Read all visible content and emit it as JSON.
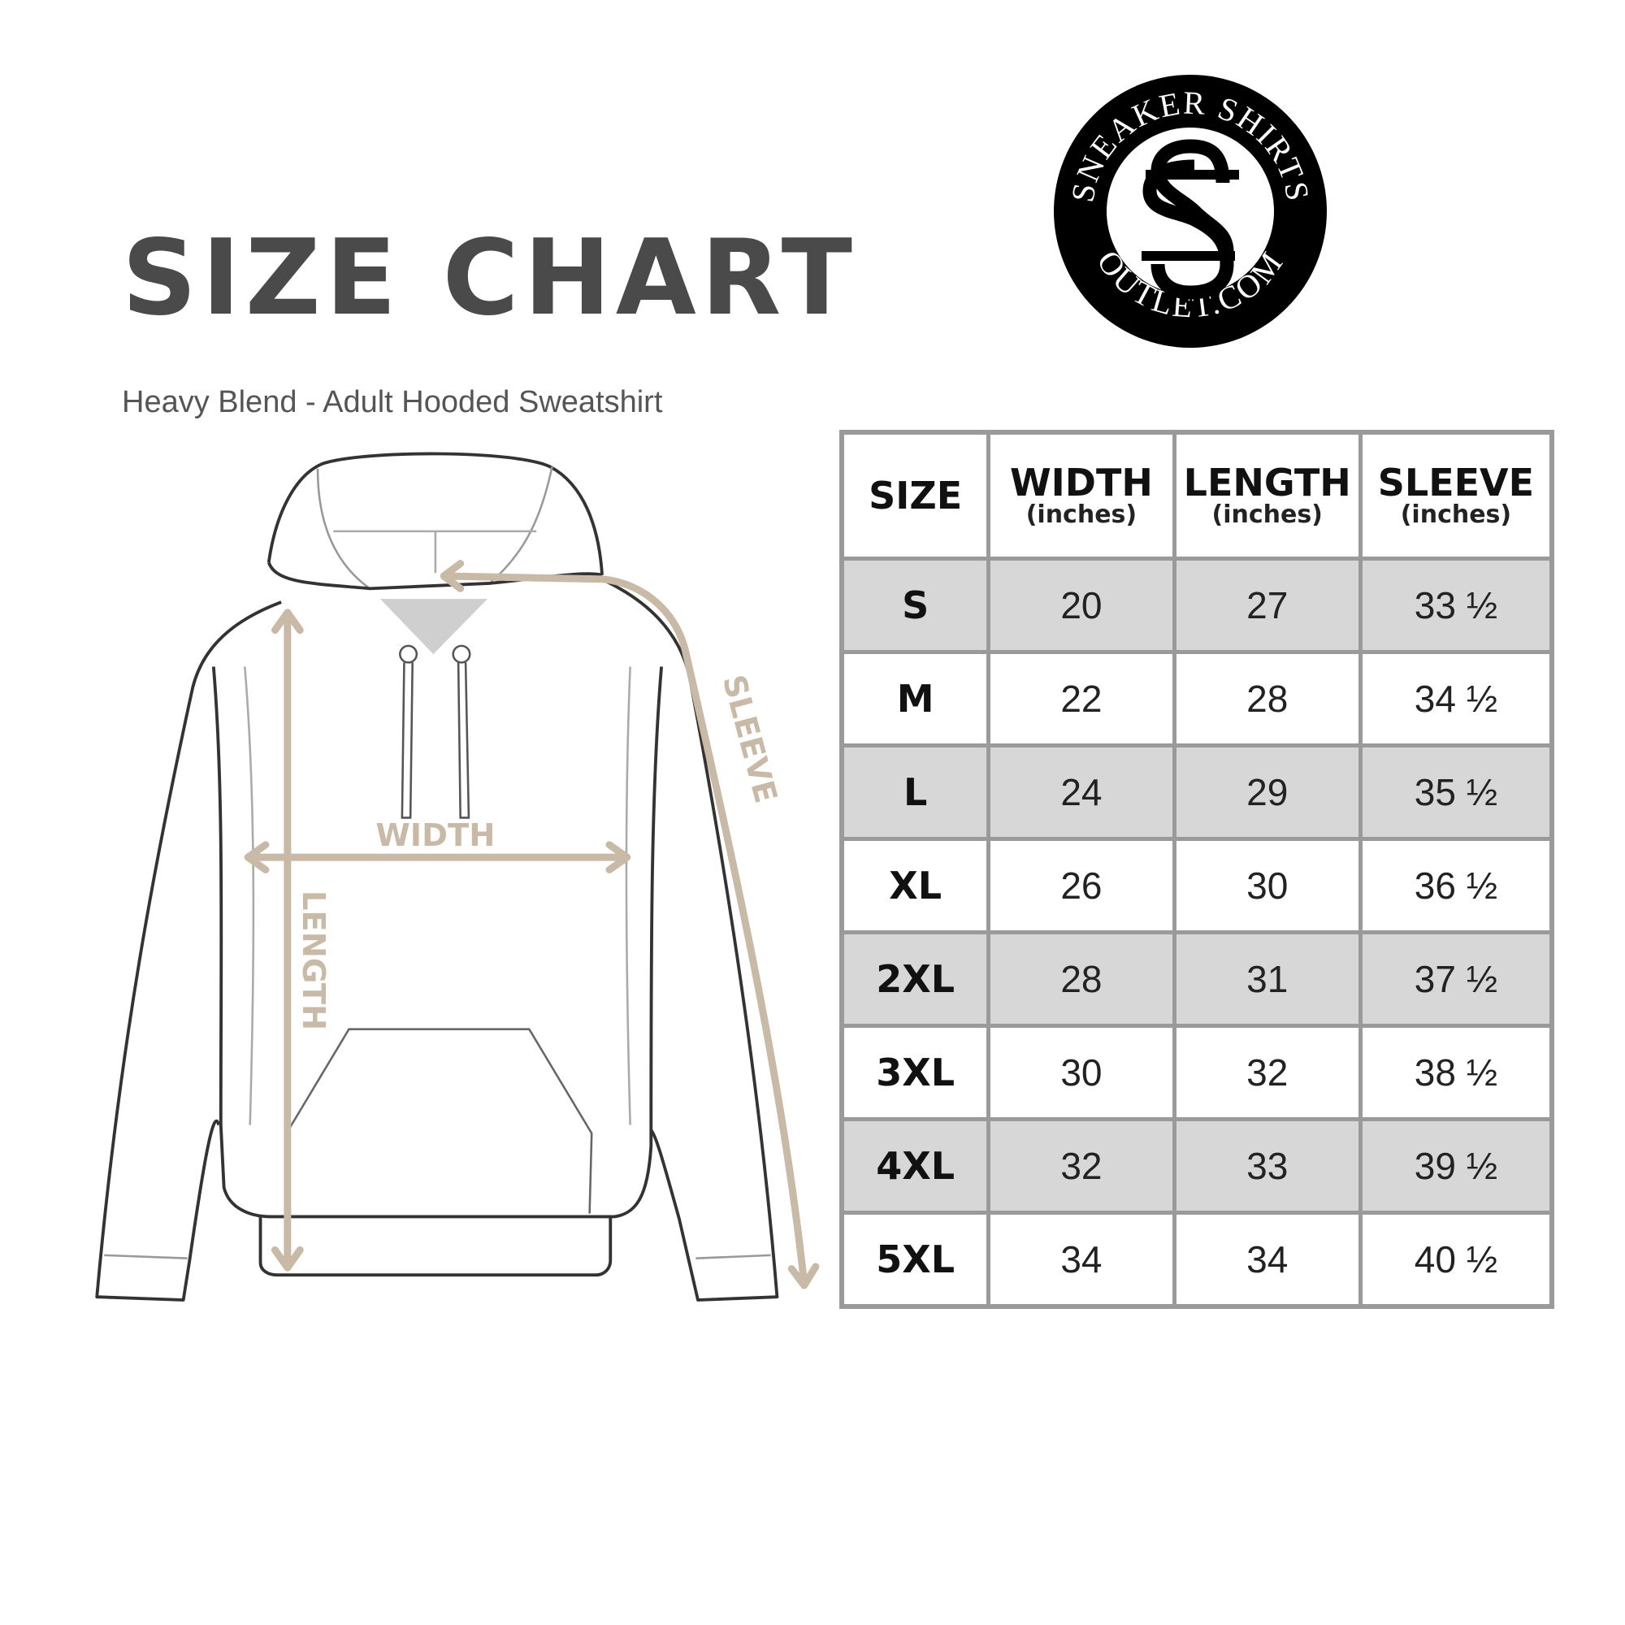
{
  "title": "SIZE CHART",
  "subtitle": "Heavy Blend - Adult Hooded Sweatshirt",
  "logo": {
    "top_text": "SNEAKER SHIRTS",
    "bottom_text": "OUTLET.COM",
    "monogram": "SS"
  },
  "diagram": {
    "labels": {
      "width": "WIDTH",
      "length": "LENGTH",
      "sleeve": "SLEEVE"
    },
    "arrow_color": "#c8baa6",
    "outline_color": "#333333"
  },
  "table": {
    "headers": [
      {
        "label": "SIZE",
        "unit": ""
      },
      {
        "label": "WIDTH",
        "unit": "(inches)"
      },
      {
        "label": "LENGTH",
        "unit": "(inches)"
      },
      {
        "label": "SLEEVE",
        "unit": "(inches)"
      }
    ],
    "rows": [
      [
        "S",
        "20",
        "27",
        "33 ½"
      ],
      [
        "M",
        "22",
        "28",
        "34 ½"
      ],
      [
        "L",
        "24",
        "29",
        "35 ½"
      ],
      [
        "XL",
        "26",
        "30",
        "36 ½"
      ],
      [
        "2XL",
        "28",
        "31",
        "37 ½"
      ],
      [
        "3XL",
        "30",
        "32",
        "38 ½"
      ],
      [
        "4XL",
        "32",
        "33",
        "39 ½"
      ],
      [
        "5XL",
        "34",
        "34",
        "40 ½"
      ]
    ],
    "shade_color": "#d7d7d7",
    "border_color": "#9a9a9a"
  }
}
